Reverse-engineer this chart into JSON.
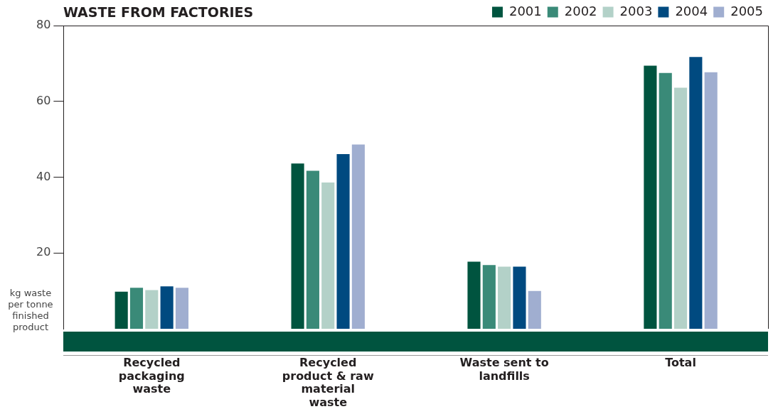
{
  "chart_data": {
    "type": "bar",
    "title": "WASTE FROM FACTORIES",
    "ylabel": "kg waste per tonne finished product",
    "categories": [
      "Recycled packaging waste",
      "Recycled product & raw material waste",
      "Waste sent to landfills",
      "Total"
    ],
    "series": [
      {
        "name": "2001",
        "color": "#00543f",
        "values": [
          9.8,
          43.6,
          17.7,
          69.4
        ]
      },
      {
        "name": "2002",
        "color": "#3a8a78",
        "values": [
          10.8,
          41.7,
          16.8,
          67.5
        ]
      },
      {
        "name": "2003",
        "color": "#b3d1c8",
        "values": [
          10.2,
          38.6,
          16.4,
          63.6
        ]
      },
      {
        "name": "2004",
        "color": "#004a80",
        "values": [
          11.2,
          46.1,
          16.4,
          71.7
        ]
      },
      {
        "name": "2005",
        "color": "#a0aed0",
        "values": [
          10.8,
          48.6,
          10.0,
          67.7
        ]
      }
    ],
    "ylim": [
      0,
      80
    ],
    "yticks": [
      20,
      40,
      60,
      80
    ],
    "grid": false,
    "legend": "top right"
  }
}
